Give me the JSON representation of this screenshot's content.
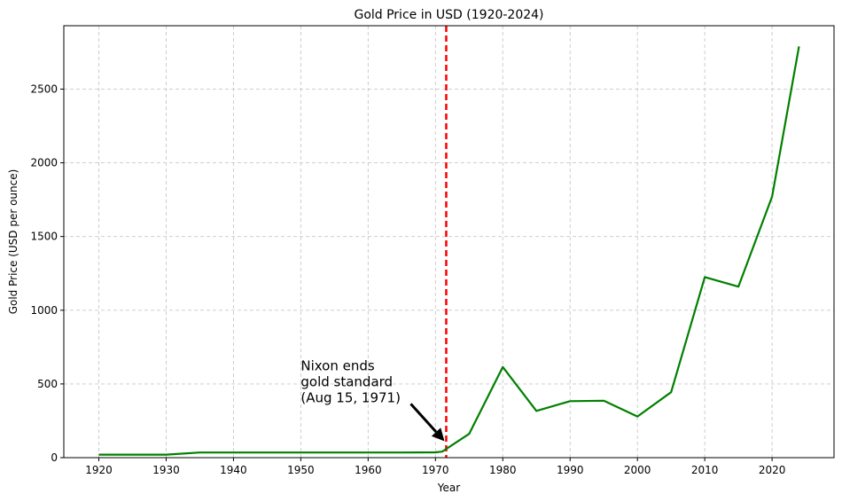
{
  "chart_data": {
    "type": "line",
    "title": "Gold Price in USD (1920-2024)",
    "xlabel": "Year",
    "ylabel": "Gold Price (USD per ounce)",
    "xlim": [
      1914.8,
      2029.2
    ],
    "ylim": [
      0,
      2930
    ],
    "xticks": [
      1920,
      1930,
      1940,
      1950,
      1960,
      1970,
      1980,
      1990,
      2000,
      2010,
      2020
    ],
    "yticks": [
      0,
      500,
      1000,
      1500,
      2000,
      2500
    ],
    "grid": true,
    "series": [
      {
        "color": "#008000",
        "x": [
          1920,
          1925,
          1930,
          1935,
          1940,
          1945,
          1950,
          1955,
          1960,
          1965,
          1970,
          1971,
          1975,
          1980,
          1985,
          1990,
          1995,
          2000,
          2005,
          2010,
          2015,
          2020,
          2024
        ],
        "y": [
          20.67,
          20.67,
          20.67,
          35,
          35,
          35,
          35,
          35,
          35,
          35,
          36,
          41,
          161,
          615,
          317,
          383,
          386,
          279,
          444,
          1225,
          1160,
          1770,
          2790
        ]
      }
    ],
    "reference_line": {
      "x": 1971.6,
      "color": "#ff0000",
      "style": "dashed"
    },
    "annotation": {
      "lines": [
        "Nixon ends",
        "gold standard",
        "(Aug 15, 1971)"
      ],
      "point": [
        1971.6,
        100
      ],
      "text_anchor": [
        1950,
        400
      ]
    }
  }
}
